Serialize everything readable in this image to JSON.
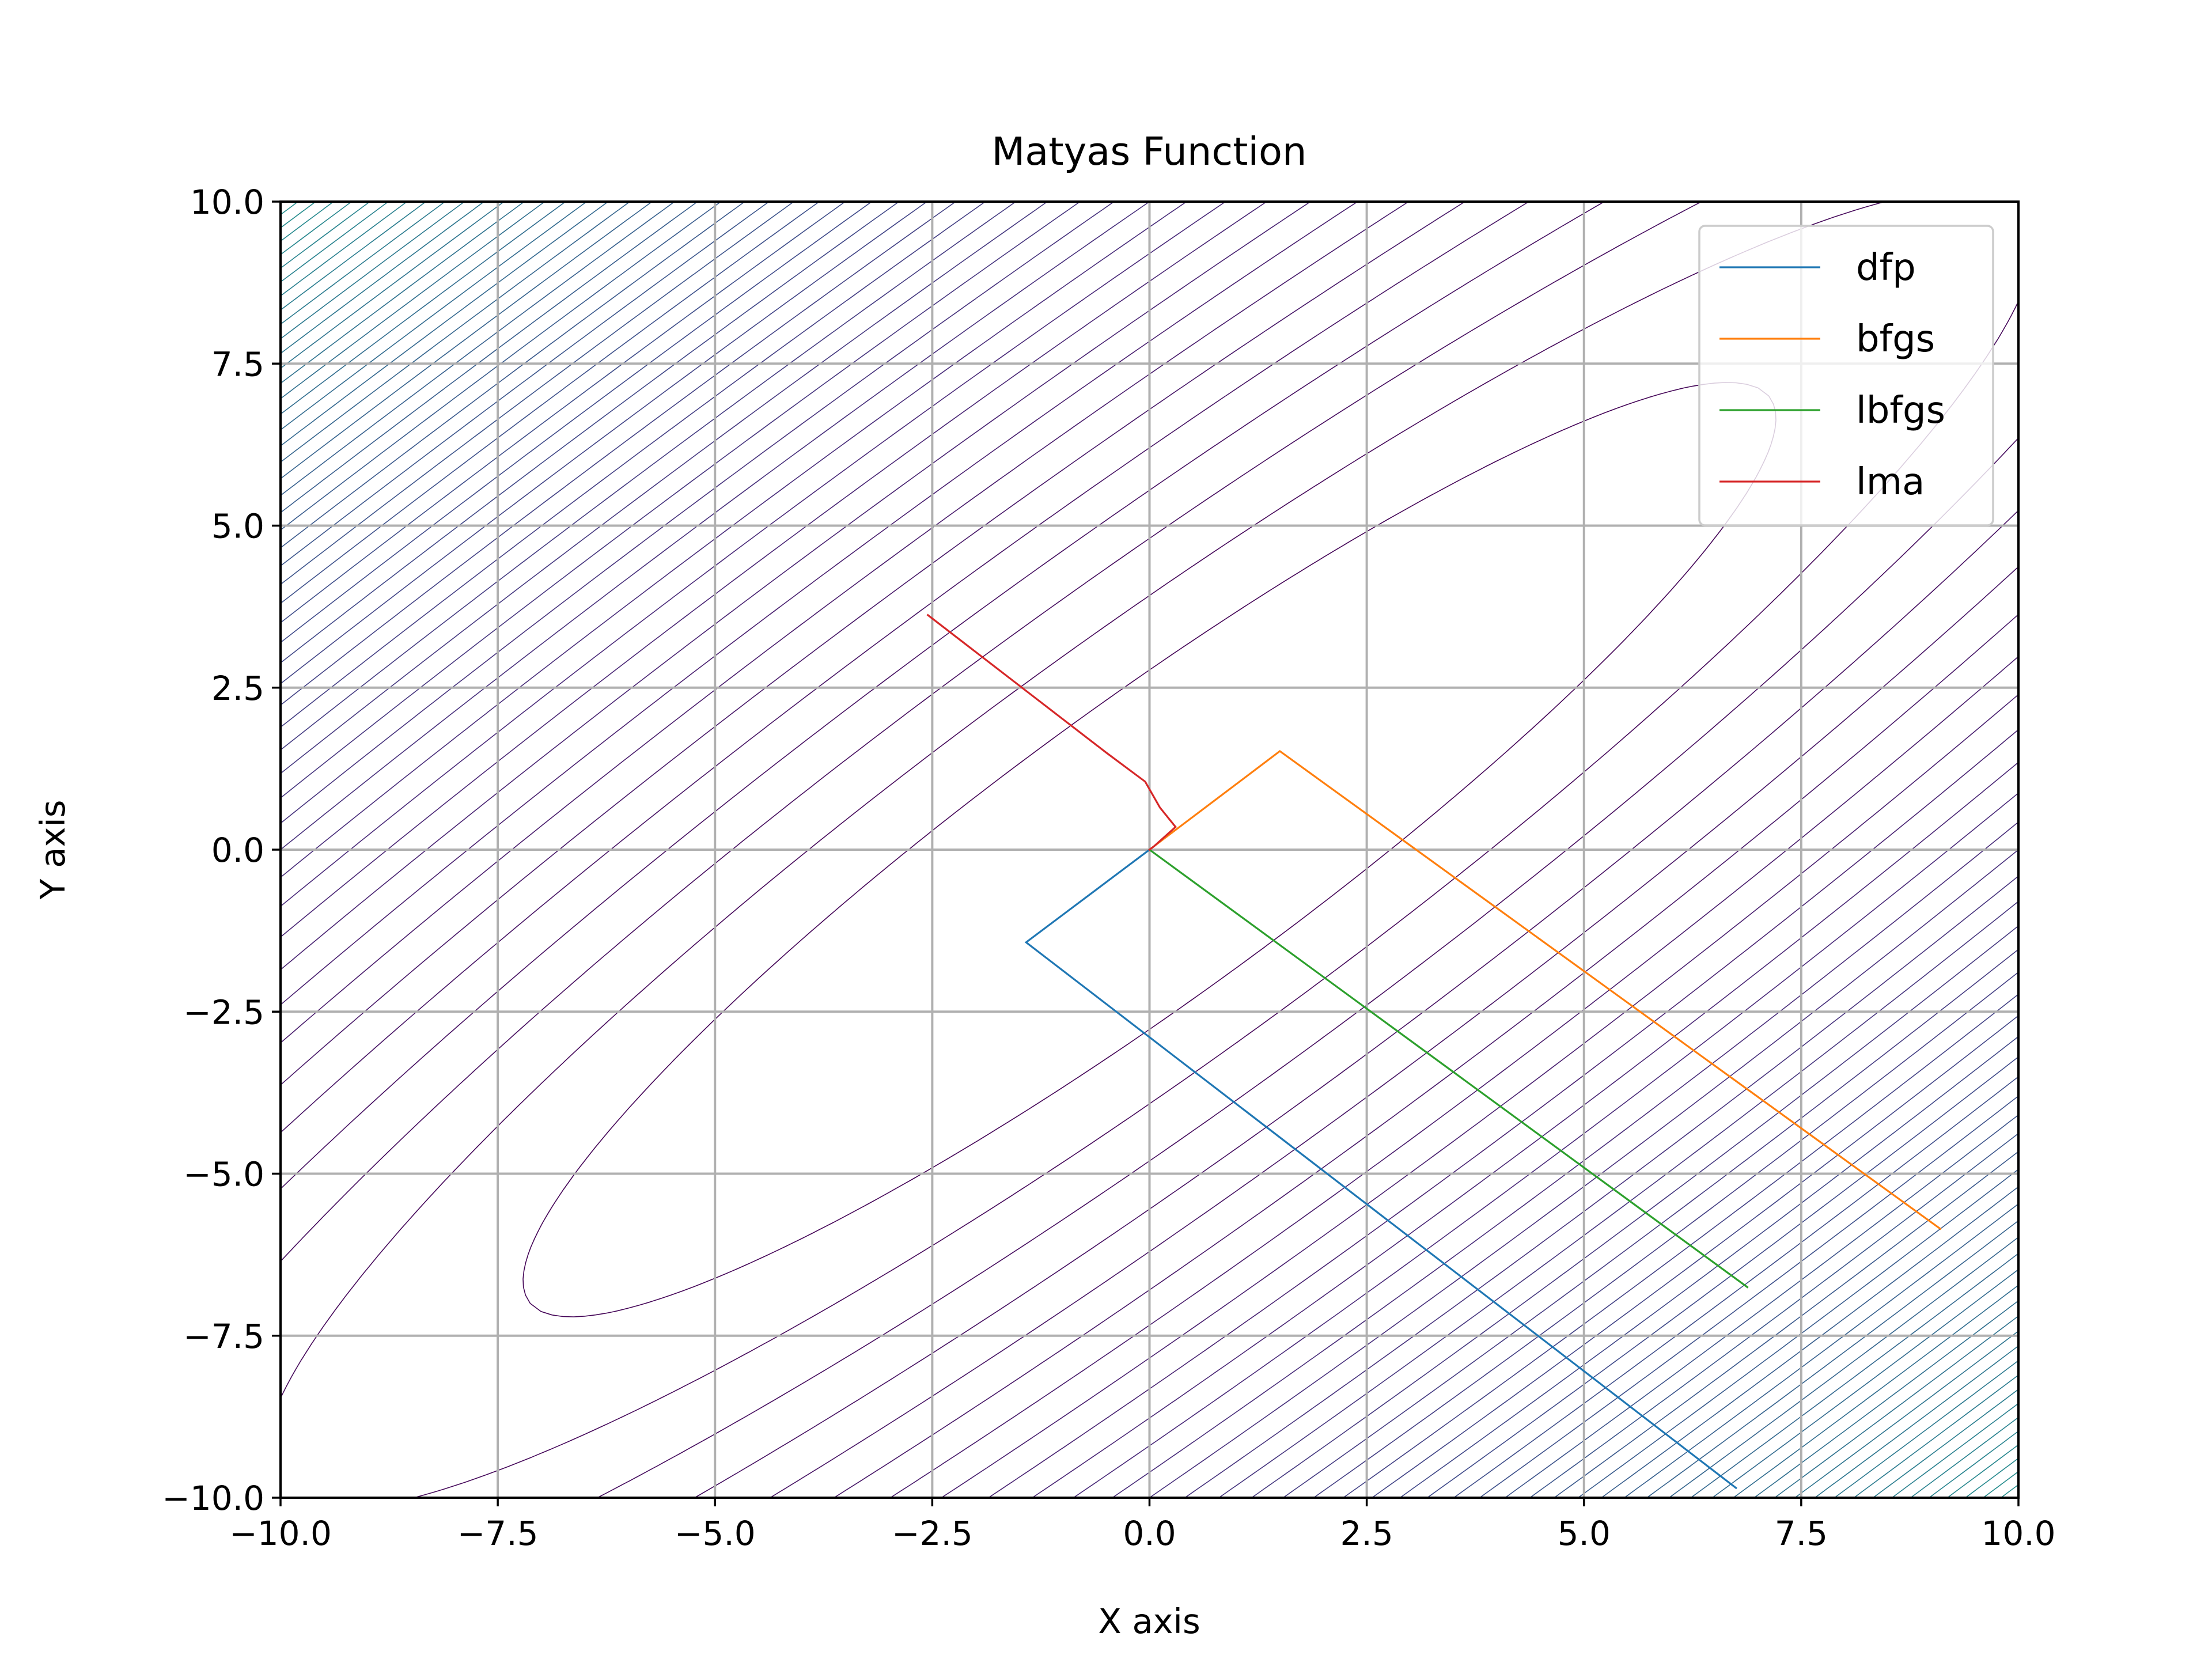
{
  "chart_data": {
    "type": "line",
    "title": "Matyas Function",
    "xlabel": "X axis",
    "ylabel": "Y axis",
    "xlim": [
      -10,
      10
    ],
    "ylim": [
      -10,
      10
    ],
    "x_ticks": [
      -10,
      -7.5,
      -5,
      -2.5,
      0,
      2.5,
      5,
      7.5,
      10
    ],
    "y_ticks": [
      -10,
      -7.5,
      -5,
      -2.5,
      0,
      2.5,
      5,
      7.5,
      10
    ],
    "x_tick_labels": [
      "−10.0",
      "−7.5",
      "−5.0",
      "−2.5",
      "0.0",
      "2.5",
      "5.0",
      "7.5",
      "10.0"
    ],
    "y_tick_labels": [
      "−10.0",
      "−7.5",
      "−5.0",
      "−2.5",
      "0.0",
      "2.5",
      "5.0",
      "7.5",
      "10.0"
    ],
    "grid": true,
    "legend_position": "upper right",
    "background": {
      "type": "contour",
      "function": "0.26*(x^2+y^2) - 0.48*x*y",
      "levels": 100,
      "colormap": "viridis"
    },
    "series": [
      {
        "name": "dfp",
        "color": "#1f77b4",
        "points": [
          [
            6.75,
            -9.85
          ],
          [
            -1.42,
            -1.43
          ],
          [
            0,
            0
          ]
        ]
      },
      {
        "name": "bfgs",
        "color": "#ff7f0e",
        "points": [
          [
            9.1,
            -5.85
          ],
          [
            1.5,
            1.52
          ],
          [
            0,
            0
          ]
        ]
      },
      {
        "name": "lbfgs",
        "color": "#2ca02c",
        "points": [
          [
            6.88,
            -6.75
          ],
          [
            0,
            0
          ]
        ]
      },
      {
        "name": "lma",
        "color": "#d62728",
        "points": [
          [
            -2.55,
            3.62
          ],
          [
            -0.5,
            1.5
          ],
          [
            -0.05,
            1.05
          ],
          [
            0.12,
            0.65
          ],
          [
            0.3,
            0.35
          ],
          [
            0.05,
            0.05
          ],
          [
            0,
            0
          ]
        ]
      }
    ]
  }
}
